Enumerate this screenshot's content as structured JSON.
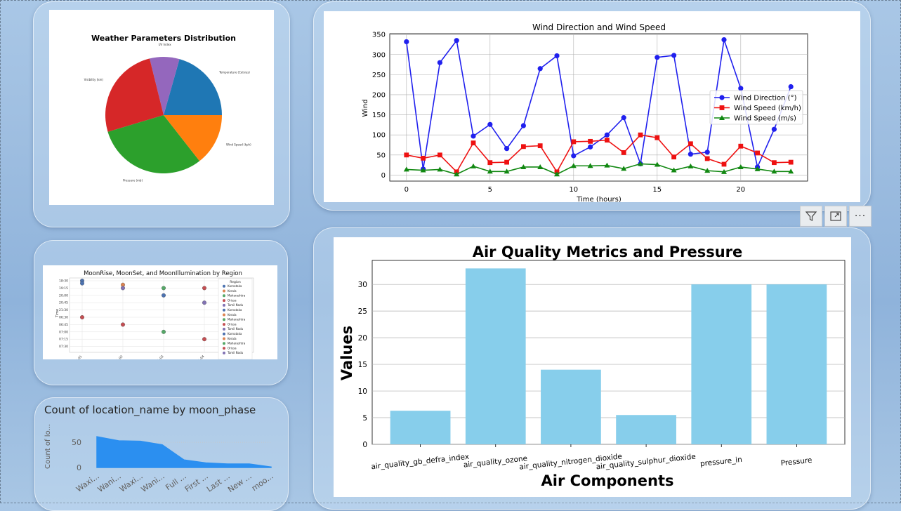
{
  "colors": {
    "blue_series": "#2020ee",
    "red_series": "#ee1111",
    "green_series": "#118811",
    "bar_fill": "#87ceeb",
    "area_fill": "#2b8ff0"
  },
  "toolbar": {
    "filter_icon": "filter-icon",
    "focus_icon": "focus-mode-icon",
    "more_label": "···"
  },
  "pie_chart": {
    "chart_data": {
      "type": "pie",
      "title": "Weather Parameters Distribution",
      "labels": [
        "Temperature (Celsius)",
        "UV Index",
        "Visibility (km)",
        "Pressure (mb)",
        "Wind Speed (kph)"
      ],
      "values": [
        20,
        8,
        25,
        30,
        14
      ],
      "colors": [
        "#1f77b4",
        "#9467bd",
        "#d62728",
        "#2ca02c",
        "#ff7f0e"
      ]
    }
  },
  "moon_chart": {
    "chart_data": {
      "type": "scatter",
      "title": "MoonRise, MoonSet, and MoonIllumination by Region",
      "ylabel": "Time",
      "y_ticks": [
        "18:30",
        "19:15",
        "20:00",
        "20:45",
        "21:30",
        "06:30",
        "06:45",
        "07:00",
        "07:15",
        "07:30"
      ],
      "x_ticks": [
        "01-01",
        "01-02",
        "01-03",
        "01-04"
      ],
      "legend_title": "Region",
      "legend": [
        {
          "label": "Karnataka",
          "color": "#4c72b0"
        },
        {
          "label": "Kerala",
          "color": "#dd8452"
        },
        {
          "label": "Maharashtra",
          "color": "#55a868"
        },
        {
          "label": "Orissa",
          "color": "#c44e52"
        },
        {
          "label": "Tamil Nadu",
          "color": "#8172b3"
        },
        {
          "label": "Karnataka",
          "color": "#4c72b0"
        },
        {
          "label": "Kerala",
          "color": "#dd8452"
        },
        {
          "label": "Maharashtra",
          "color": "#55a868"
        },
        {
          "label": "Orissa",
          "color": "#c44e52"
        },
        {
          "label": "Tamil Nadu",
          "color": "#8172b3"
        },
        {
          "label": "Karnataka",
          "color": "#4c72b0"
        },
        {
          "label": "Kerala",
          "color": "#dd8452"
        },
        {
          "label": "Maharashtra",
          "color": "#55a868"
        },
        {
          "label": "Orissa",
          "color": "#c44e52"
        },
        {
          "label": "Tamil Nadu",
          "color": "#8172b3"
        }
      ],
      "points": [
        {
          "x": 0,
          "y": "18:30",
          "color": "#4c72b0"
        },
        {
          "x": 0,
          "y": "18:35",
          "color": "#4c72b0"
        },
        {
          "x": 0,
          "y": "06:30",
          "color": "#c44e52"
        },
        {
          "x": 1,
          "y": "19:00",
          "color": "#dd8452"
        },
        {
          "x": 1,
          "y": "19:15",
          "color": "#8172b3"
        },
        {
          "x": 1,
          "y": "06:45",
          "color": "#c44e52"
        },
        {
          "x": 2,
          "y": "19:15",
          "color": "#55a868"
        },
        {
          "x": 2,
          "y": "20:00",
          "color": "#4c72b0"
        },
        {
          "x": 2,
          "y": "07:00",
          "color": "#55a868"
        },
        {
          "x": 3,
          "y": "19:15",
          "color": "#c44e52"
        },
        {
          "x": 3,
          "y": "20:45",
          "color": "#8172b3"
        },
        {
          "x": 3,
          "y": "07:15",
          "color": "#c44e52"
        }
      ]
    }
  },
  "wind_chart": {
    "chart_data": {
      "type": "line",
      "title": "Wind Direction and Wind Speed",
      "xlabel": "Time (hours)",
      "ylabel": "Wind",
      "xlim": [
        -1,
        24
      ],
      "ylim": [
        -15,
        352
      ],
      "x_ticks": [
        0,
        5,
        10,
        15,
        20
      ],
      "y_ticks": [
        0,
        50,
        100,
        150,
        200,
        250,
        300,
        350
      ],
      "legend_position": "right",
      "x": [
        0,
        1,
        2,
        3,
        4,
        5,
        6,
        7,
        8,
        9,
        10,
        11,
        12,
        13,
        14,
        15,
        16,
        17,
        18,
        19,
        20,
        21,
        22,
        23
      ],
      "series": [
        {
          "name": "Wind Direction (°)",
          "color": "#2020ee",
          "marker": "circle",
          "values": [
            332,
            15,
            280,
            335,
            97,
            126,
            66,
            123,
            265,
            297,
            48,
            70,
            100,
            143,
            28,
            293,
            298,
            52,
            57,
            337,
            216,
            20,
            114,
            220
          ]
        },
        {
          "name": "Wind Speed (km/h)",
          "color": "#ee1111",
          "marker": "square",
          "values": [
            50,
            42,
            50,
            8,
            80,
            31,
            32,
            71,
            73,
            8,
            83,
            84,
            87,
            56,
            100,
            93,
            45,
            78,
            41,
            27,
            72,
            55,
            31,
            32
          ]
        },
        {
          "name": "Wind Speed (m/s)",
          "color": "#118811",
          "marker": "triangle",
          "values": [
            14,
            12,
            14,
            2,
            22,
            9,
            9,
            20,
            20,
            2,
            23,
            23,
            24,
            16,
            28,
            26,
            12,
            22,
            11,
            8,
            20,
            15,
            9,
            9
          ]
        }
      ]
    }
  },
  "air_chart": {
    "chart_data": {
      "type": "bar",
      "title": "Air Quality Metrics and Pressure",
      "xlabel": "Air Components",
      "ylabel": "Values",
      "ylim": [
        0,
        34.5
      ],
      "y_ticks": [
        0,
        5,
        10,
        15,
        20,
        25,
        30
      ],
      "categories": [
        "air_quality_gb_defra_index",
        "air_quality_ozone",
        "air_quality_nitrogen_dioxide",
        "air_quality_sulphur_dioxide",
        "pressure_in",
        "Pressure"
      ],
      "values": [
        6.3,
        33,
        14,
        5.5,
        30,
        30
      ]
    }
  },
  "moon_phase_chart": {
    "chart_data": {
      "type": "area",
      "title": "Count of location_name by moon_phase",
      "ylabel": "Count of lo...",
      "y_ticks": [
        0,
        50
      ],
      "ylim": [
        0,
        78
      ],
      "categories": [
        "Waxi...",
        "Wani...",
        "Waxi...",
        "Wani...",
        "Full ...",
        "First ...",
        "Last ...",
        "New ...",
        "moo..."
      ],
      "values": [
        61,
        53,
        52,
        45,
        15,
        9,
        7,
        7,
        1
      ]
    }
  }
}
